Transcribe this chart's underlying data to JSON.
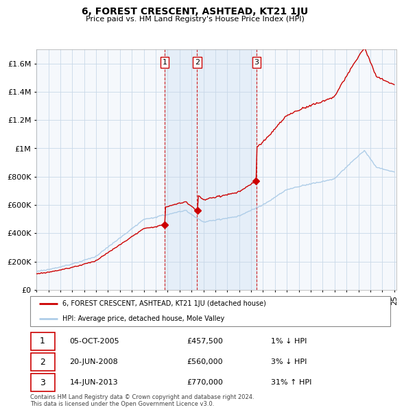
{
  "title": "6, FOREST CRESCENT, ASHTEAD, KT21 1JU",
  "subtitle": "Price paid vs. HM Land Registry's House Price Index (HPI)",
  "ylabel_ticks": [
    "£0",
    "£200K",
    "£400K",
    "£600K",
    "£800K",
    "£1M",
    "£1.2M",
    "£1.4M",
    "£1.6M"
  ],
  "ytick_values": [
    0,
    200000,
    400000,
    600000,
    800000,
    1000000,
    1200000,
    1400000,
    1600000
  ],
  "ylim": [
    0,
    1700000
  ],
  "hpi_color": "#aecde8",
  "price_color": "#cc0000",
  "vline_color": "#cc0000",
  "shade_color": "#ddeeff",
  "sale_dates_float": [
    2005.75,
    2008.47,
    2013.45
  ],
  "sale_labels": [
    "1",
    "2",
    "3"
  ],
  "sale_prices": [
    457500,
    560000,
    770000
  ],
  "legend_price_label": "6, FOREST CRESCENT, ASHTEAD, KT21 1JU (detached house)",
  "legend_hpi_label": "HPI: Average price, detached house, Mole Valley",
  "table_rows": [
    [
      "1",
      "05-OCT-2005",
      "£457,500",
      "1% ↓ HPI"
    ],
    [
      "2",
      "20-JUN-2008",
      "£560,000",
      "3% ↓ HPI"
    ],
    [
      "3",
      "14-JUN-2013",
      "£770,000",
      "31% ↑ HPI"
    ]
  ],
  "footnote": "Contains HM Land Registry data © Crown copyright and database right 2024.\nThis data is licensed under the Open Government Licence v3.0.",
  "background_color": "#ffffff",
  "grid_color": "#cccccc",
  "chart_bg": "#f0f4f8"
}
